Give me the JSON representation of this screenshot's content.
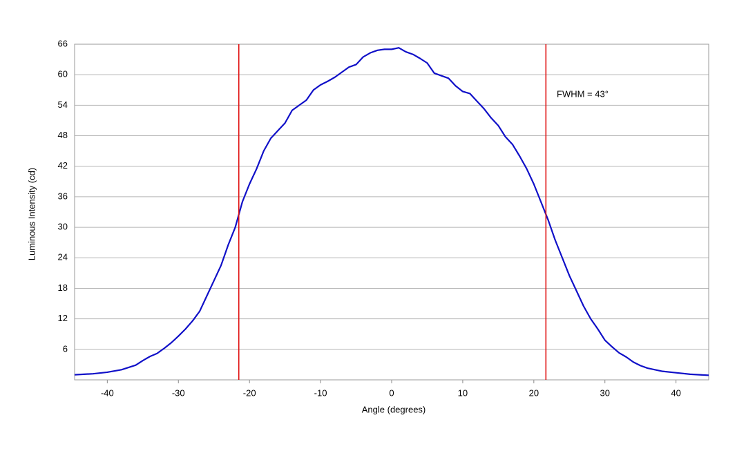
{
  "chart_data": {
    "type": "line",
    "x_label": "Angle (degrees)",
    "y_label": "Luminous Intensity (cd)",
    "xlim": [
      -44.6,
      44.6
    ],
    "ylim": [
      0,
      66
    ],
    "xticks": [
      -40,
      -30,
      -20,
      -10,
      0,
      10,
      20,
      30,
      40
    ],
    "yticks": [
      6,
      12,
      18,
      24,
      30,
      36,
      42,
      48,
      54,
      60,
      66
    ],
    "grid": true,
    "x": [
      -44.6,
      -42,
      -40,
      -38,
      -36,
      -35,
      -34,
      -33,
      -32,
      -31,
      -30,
      -29,
      -28,
      -27,
      -26,
      -25,
      -24,
      -23,
      -22,
      -21,
      -20,
      -19,
      -18,
      -17,
      -16,
      -15,
      -14,
      -13,
      -12,
      -11,
      -10,
      -9,
      -8,
      -7,
      -6,
      -5,
      -4,
      -3,
      -2,
      -1,
      0,
      1,
      2,
      3,
      4,
      5,
      6,
      7,
      8,
      9,
      10,
      11,
      12,
      13,
      14,
      15,
      16,
      17,
      18,
      19,
      20,
      21,
      22,
      23,
      24,
      25,
      26,
      27,
      28,
      29,
      30,
      31,
      32,
      33,
      34,
      35,
      36,
      38,
      40,
      42,
      44.6
    ],
    "series": [
      {
        "name": "Luminous Intensity",
        "color": "#1010c8",
        "values": [
          1.0,
          1.2,
          1.5,
          2.0,
          2.9,
          3.8,
          4.6,
          5.2,
          6.2,
          7.3,
          8.6,
          10.0,
          11.6,
          13.5,
          16.5,
          19.5,
          22.5,
          26.5,
          30.0,
          35.0,
          38.5,
          41.5,
          45.0,
          47.5,
          49.0,
          50.5,
          53.0,
          54.0,
          55.0,
          57.0,
          58.0,
          58.7,
          59.5,
          60.5,
          61.5,
          62.0,
          63.5,
          64.3,
          64.8,
          65.0,
          65.0,
          65.3,
          64.5,
          64.0,
          63.2,
          62.3,
          60.3,
          59.8,
          59.3,
          57.8,
          56.7,
          56.3,
          54.8,
          53.3,
          51.5,
          50.0,
          47.8,
          46.3,
          44.0,
          41.5,
          38.5,
          35.0,
          31.5,
          27.5,
          24.0,
          20.5,
          17.5,
          14.5,
          12.0,
          10.0,
          7.8,
          6.5,
          5.3,
          4.5,
          3.5,
          2.8,
          2.3,
          1.7,
          1.4,
          1.1,
          0.9
        ]
      }
    ],
    "vlines": {
      "color": "#e01010",
      "x": [
        -21.5,
        21.7
      ]
    },
    "annotation": "FWHM = 43°"
  }
}
